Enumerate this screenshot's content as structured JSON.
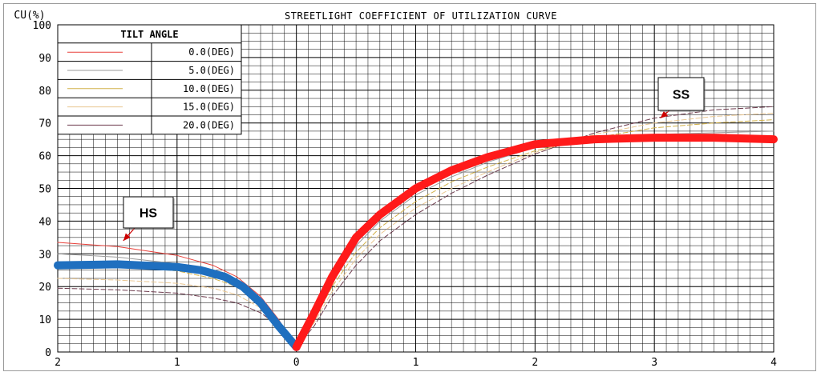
{
  "chart_data": {
    "type": "line",
    "title": "STREETLIGHT COEFFICIENT OF UTILIZATION CURVE",
    "ylabel": "CU(%)",
    "xlabel": "",
    "x_range": [
      -2,
      4
    ],
    "ylim": [
      0,
      100
    ],
    "x_tick_labels": [
      "2",
      "1",
      "0",
      "1",
      "2",
      "3",
      "4"
    ],
    "x_tick_values": [
      -2,
      -1,
      0,
      1,
      2,
      3,
      4
    ],
    "y_ticks": [
      0,
      10,
      20,
      30,
      40,
      50,
      60,
      70,
      80,
      90,
      100
    ],
    "grid": true,
    "legend": {
      "title": "TILT ANGLE",
      "placement": "top-left",
      "entries": [
        {
          "label": "0.0(DEG)",
          "color": "#e8403a"
        },
        {
          "label": "5.0(DEG)",
          "color": "#9a9a9a"
        },
        {
          "label": "10.0(DEG)",
          "color": "#d2b24a"
        },
        {
          "label": "15.0(DEG)",
          "color": "#e9c690"
        },
        {
          "label": "20.0(DEG)",
          "color": "#6e3c4e"
        }
      ]
    },
    "series": [
      {
        "name": "0.0(DEG)",
        "color": "#e8403a",
        "x": [
          -2,
          -1.5,
          -1,
          -0.7,
          -0.5,
          -0.3,
          -0.15,
          0,
          0.15,
          0.3,
          0.5,
          0.7,
          1,
          1.3,
          1.6,
          2,
          2.5,
          3,
          3.5,
          4
        ],
        "y": [
          33.5,
          32.2,
          29.5,
          26.5,
          23,
          17,
          10,
          1.5,
          12,
          23,
          35,
          42,
          50,
          55.5,
          59.5,
          63.5,
          65,
          65.5,
          65,
          64.5
        ]
      },
      {
        "name": "5.0(DEG)",
        "color": "#9a9a9a",
        "x": [
          -2,
          -1.5,
          -1,
          -0.7,
          -0.5,
          -0.3,
          -0.15,
          0,
          0.15,
          0.3,
          0.5,
          0.7,
          1,
          1.3,
          1.6,
          2,
          2.5,
          3,
          3.5,
          4
        ],
        "y": [
          30,
          29,
          27,
          24.5,
          21.5,
          16,
          9.5,
          1.5,
          11,
          21.5,
          32.5,
          40,
          48,
          53.5,
          58,
          62.5,
          65,
          66.5,
          67,
          67.5
        ]
      },
      {
        "name": "10.0(DEG)",
        "color": "#d2b24a",
        "x": [
          -2,
          -1.5,
          -1,
          -0.7,
          -0.5,
          -0.3,
          -0.15,
          0,
          0.15,
          0.3,
          0.5,
          0.7,
          1,
          1.3,
          1.6,
          2,
          2.5,
          3,
          3.5,
          4
        ],
        "y": [
          27,
          26.2,
          24.8,
          22.5,
          20,
          15,
          9,
          1.5,
          10,
          20,
          30.5,
          38,
          46,
          52,
          56.5,
          61.5,
          65.5,
          68.5,
          70,
          71
        ]
      },
      {
        "name": "15.0(DEG)",
        "color": "#e9c690",
        "x": [
          -2,
          -1.5,
          -1,
          -0.7,
          -0.5,
          -0.3,
          -0.15,
          0,
          0.15,
          0.3,
          0.5,
          0.7,
          1,
          1.3,
          1.6,
          2,
          2.5,
          3,
          3.5,
          4
        ],
        "y": [
          22.5,
          22,
          21,
          19.5,
          17.5,
          13.5,
          8.5,
          1.5,
          9,
          18.5,
          28.5,
          36,
          44,
          50,
          55,
          61,
          66.5,
          70,
          72,
          73
        ]
      },
      {
        "name": "20.0(DEG)",
        "color": "#6e3c4e",
        "x": [
          -2,
          -1.5,
          -1,
          -0.7,
          -0.5,
          -0.3,
          -0.15,
          0,
          0.15,
          0.3,
          0.5,
          0.7,
          1,
          1.3,
          1.6,
          2,
          2.5,
          3,
          3.5,
          4
        ],
        "y": [
          19.5,
          19,
          18,
          16.5,
          15,
          12,
          8,
          1.5,
          8,
          17,
          26.5,
          34,
          42,
          48.5,
          54,
          60.5,
          67,
          71.5,
          74,
          75
        ]
      },
      {
        "name": "HS",
        "color": "#1f6fbf",
        "x": [
          -2,
          -1.5,
          -1,
          -0.8,
          -0.6,
          -0.45,
          -0.3,
          -0.15,
          0
        ],
        "y": [
          26.5,
          26.8,
          26,
          25,
          23,
          20,
          15,
          8,
          1.5
        ]
      },
      {
        "name": "SS",
        "color": "#ff1a1a",
        "x": [
          0,
          0.15,
          0.3,
          0.5,
          0.7,
          1,
          1.3,
          1.6,
          2,
          2.5,
          3,
          3.5,
          4
        ],
        "y": [
          1.5,
          12,
          23,
          35,
          42,
          50,
          55.5,
          59.5,
          63.5,
          65,
          65.5,
          65.5,
          65
        ]
      }
    ],
    "annotations": [
      {
        "text": "HS",
        "arrow_to": [
          -1.45,
          34
        ]
      },
      {
        "text": "SS",
        "arrow_to": [
          3.05,
          71.5
        ]
      }
    ]
  }
}
